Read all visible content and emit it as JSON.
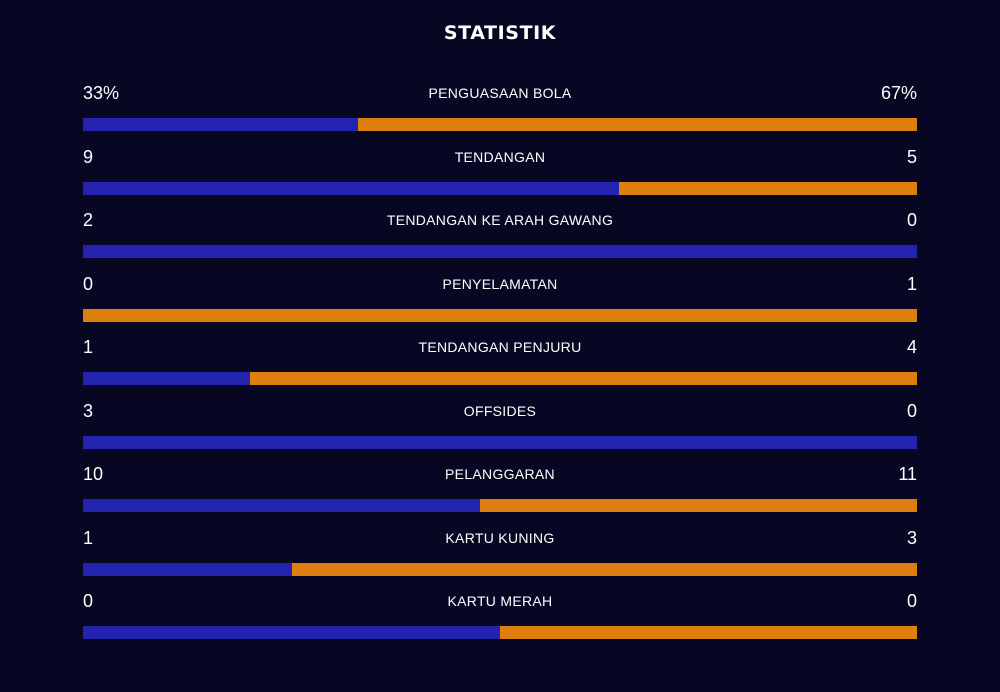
{
  "title": "STATISTIK",
  "colors": {
    "background": "#070723",
    "home": "#2323b0",
    "away": "#dd8010",
    "text": "#ffffff"
  },
  "stats": [
    {
      "label": "PENGUASAAN BOLA",
      "home": "33%",
      "away": "67%",
      "home_share": 0.33
    },
    {
      "label": "TENDANGAN",
      "home": "9",
      "away": "5",
      "home_share": 0.6429
    },
    {
      "label": "TENDANGAN KE ARAH GAWANG",
      "home": "2",
      "away": "0",
      "home_share": 1.0
    },
    {
      "label": "PENYELAMATAN",
      "home": "0",
      "away": "1",
      "home_share": 0.0
    },
    {
      "label": "TENDANGAN PENJURU",
      "home": "1",
      "away": "4",
      "home_share": 0.2
    },
    {
      "label": "OFFSIDES",
      "home": "3",
      "away": "0",
      "home_share": 1.0
    },
    {
      "label": "PELANGGARAN",
      "home": "10",
      "away": "11",
      "home_share": 0.4762
    },
    {
      "label": "KARTU KUNING",
      "home": "1",
      "away": "3",
      "home_share": 0.25
    },
    {
      "label": "KARTU MERAH",
      "home": "0",
      "away": "0",
      "home_share": 0.5
    }
  ]
}
